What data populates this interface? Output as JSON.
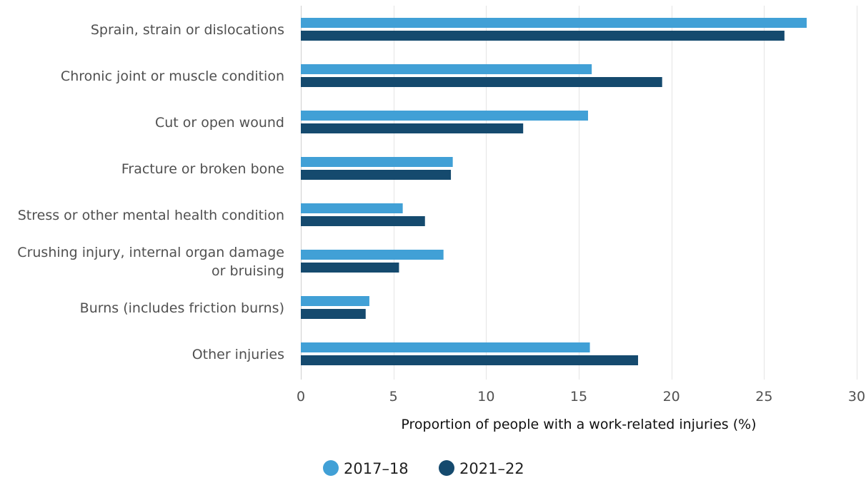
{
  "chart_data": {
    "type": "bar",
    "orientation": "horizontal",
    "categories": [
      [
        "Sprain, strain or dislocations"
      ],
      [
        "Chronic joint or muscle condition"
      ],
      [
        "Cut or open wound"
      ],
      [
        "Fracture or broken bone"
      ],
      [
        "Stress or other mental health condition"
      ],
      [
        "Crushing injury, internal organ damage",
        "or bruising"
      ],
      [
        "Burns (includes friction burns)"
      ],
      [
        "Other injuries"
      ]
    ],
    "series": [
      {
        "name": "2017–18",
        "color": "#41a0d6",
        "values": [
          27.3,
          15.7,
          15.5,
          8.2,
          5.5,
          7.7,
          3.7,
          15.6
        ]
      },
      {
        "name": "2021–22",
        "color": "#154a6e",
        "values": [
          26.1,
          19.5,
          12.0,
          8.1,
          6.7,
          5.3,
          3.5,
          18.2
        ]
      }
    ],
    "xlabel": "Proportion of people with a work-related injuries (%)",
    "ylabel": "",
    "xlim": [
      0,
      30
    ],
    "xticks": [
      0,
      5,
      10,
      15,
      20,
      25,
      30
    ],
    "grid": true,
    "legend_position": "bottom-center"
  }
}
